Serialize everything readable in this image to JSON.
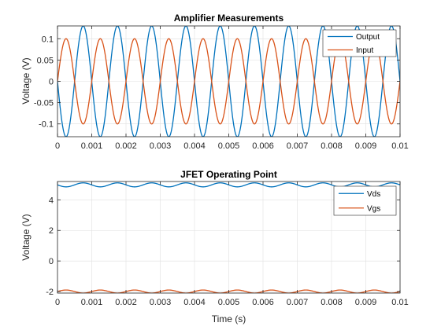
{
  "chart_data": [
    {
      "type": "line",
      "title": "Amplifier Measurements",
      "xlabel": "",
      "ylabel": "Voltage (V)",
      "xlim": [
        0,
        0.01
      ],
      "ylim": [
        -0.13,
        0.13
      ],
      "x_ticks": [
        0,
        0.001,
        0.002,
        0.003,
        0.004,
        0.005,
        0.006,
        0.007,
        0.008,
        0.009,
        0.01
      ],
      "x_tick_labels": [
        "0",
        "0.001",
        "0.002",
        "0.003",
        "0.004",
        "0.005",
        "0.006",
        "0.007",
        "0.008",
        "0.009",
        "0.01"
      ],
      "y_ticks": [
        -0.1,
        -0.05,
        0,
        0.05,
        0.1
      ],
      "y_tick_labels": [
        "-0.1",
        "-0.05",
        "0",
        "0.05",
        "0.1"
      ],
      "grid": true,
      "legend_position": "top-right",
      "series": [
        {
          "name": "Output",
          "color": "#0072BD",
          "waveform": "sine",
          "frequency_hz": 1000,
          "amplitude": 0.13,
          "offset": 0,
          "phase_deg": 180
        },
        {
          "name": "Input",
          "color": "#D95319",
          "waveform": "sine",
          "frequency_hz": 1000,
          "amplitude": 0.1,
          "offset": 0,
          "phase_deg": 0
        }
      ]
    },
    {
      "type": "line",
      "title": "JFET Operating Point",
      "xlabel": "Time (s)",
      "ylabel": "Voltage (V)",
      "xlim": [
        0,
        0.01
      ],
      "ylim": [
        -2.1,
        5.2
      ],
      "x_ticks": [
        0,
        0.001,
        0.002,
        0.003,
        0.004,
        0.005,
        0.006,
        0.007,
        0.008,
        0.009,
        0.01
      ],
      "x_tick_labels": [
        "0",
        "0.001",
        "0.002",
        "0.003",
        "0.004",
        "0.005",
        "0.006",
        "0.007",
        "0.008",
        "0.009",
        "0.01"
      ],
      "y_ticks": [
        -2,
        0,
        2,
        4
      ],
      "y_tick_labels": [
        "-2",
        "0",
        "2",
        "4"
      ],
      "grid": true,
      "legend_position": "top-right",
      "series": [
        {
          "name": "Vds",
          "color": "#0072BD",
          "waveform": "sine",
          "frequency_hz": 1000,
          "amplitude": 0.13,
          "offset": 4.98,
          "phase_deg": 180
        },
        {
          "name": "Vgs",
          "color": "#D95319",
          "waveform": "sine",
          "frequency_hz": 1000,
          "amplitude": 0.1,
          "offset": -2.0,
          "phase_deg": 0
        }
      ]
    }
  ]
}
